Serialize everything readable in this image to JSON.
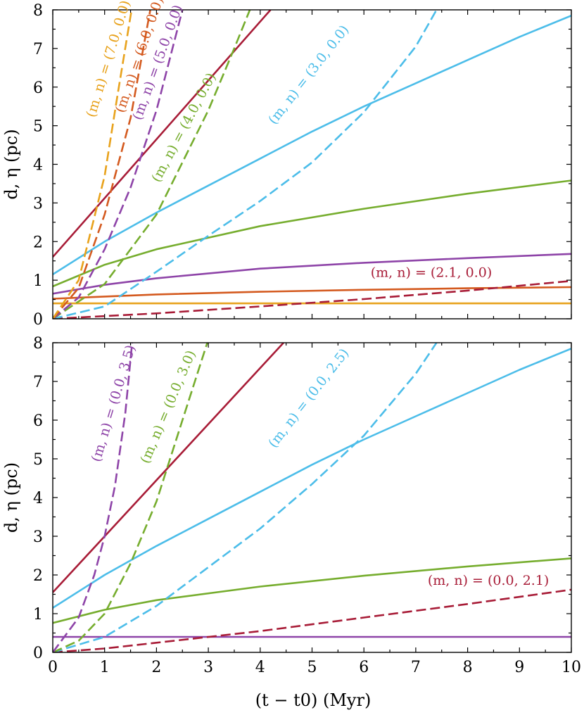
{
  "chart_data": [
    {
      "type": "line",
      "panel": "top",
      "xlim": [
        0,
        10
      ],
      "ylim": [
        0,
        8
      ],
      "x_ticks": [
        "0",
        "1",
        "2",
        "3",
        "4",
        "5",
        "6",
        "7",
        "8",
        "9",
        "10"
      ],
      "y_ticks": [
        "0",
        "1",
        "2",
        "3",
        "4",
        "5",
        "6",
        "7",
        "8"
      ],
      "ylabel": "d, η (pc)",
      "xlabel": "",
      "grid": false,
      "series": [
        {
          "style": "solid",
          "color": "#e8a21c",
          "x": [
            0,
            10
          ],
          "y": [
            0.4,
            0.4
          ]
        },
        {
          "style": "solid",
          "color": "#d45a1f",
          "x": [
            0,
            2,
            4,
            6,
            8,
            10
          ],
          "y": [
            0.52,
            0.63,
            0.7,
            0.75,
            0.79,
            0.82
          ]
        },
        {
          "style": "solid",
          "color": "#8e44a8",
          "x": [
            0,
            1,
            2,
            4,
            6,
            8,
            10
          ],
          "y": [
            0.65,
            0.88,
            1.05,
            1.3,
            1.45,
            1.57,
            1.68
          ]
        },
        {
          "style": "solid",
          "color": "#76ad2e",
          "x": [
            0,
            1,
            2,
            4,
            6,
            8,
            10
          ],
          "y": [
            0.84,
            1.4,
            1.8,
            2.4,
            2.85,
            3.24,
            3.58
          ]
        },
        {
          "style": "solid",
          "color": "#4cbde9",
          "x": [
            0,
            1,
            2,
            3,
            4,
            5,
            6,
            7,
            8,
            9,
            10
          ],
          "y": [
            1.15,
            2.0,
            2.75,
            3.45,
            4.15,
            4.85,
            5.5,
            6.1,
            6.7,
            7.3,
            7.85
          ]
        },
        {
          "style": "solid",
          "color": "#a81c37",
          "x": [
            0,
            4.2
          ],
          "y": [
            1.6,
            8.0
          ]
        },
        {
          "style": "dashed",
          "color": "#a81c37",
          "label": "(m, n) = (2.1, 0.0)",
          "x": [
            0,
            2,
            4,
            6,
            8,
            10
          ],
          "y": [
            0,
            0.14,
            0.32,
            0.51,
            0.73,
            0.98
          ]
        },
        {
          "style": "dashed",
          "color": "#4cbde9",
          "label": "(m, n) = (3.0, 0.0)",
          "x": [
            0,
            1,
            2,
            3,
            4,
            5,
            6,
            7,
            7.4
          ],
          "y": [
            0,
            0.32,
            1.22,
            2.15,
            3.05,
            4.05,
            5.35,
            7.05,
            8.0
          ]
        },
        {
          "style": "dashed",
          "color": "#76ad2e",
          "label": "(m, n) = (4.0, 0.0)",
          "x": [
            0,
            1,
            2,
            3,
            3.5,
            3.8
          ],
          "y": [
            0,
            0.9,
            2.7,
            5.4,
            7.0,
            8.0
          ]
        },
        {
          "style": "dashed",
          "color": "#8e44a8",
          "label": "(m, n) = (5.0, 0.0)",
          "x": [
            0,
            0.5,
            1,
            1.5,
            2,
            2.5
          ],
          "y": [
            0,
            0.55,
            1.8,
            3.4,
            5.4,
            8.0
          ]
        },
        {
          "style": "dashed",
          "color": "#d45a1f",
          "label": "(m, n) = (6.0, 0.0)",
          "x": [
            0,
            0.5,
            1,
            1.5,
            1.88
          ],
          "y": [
            0,
            0.8,
            2.7,
            5.2,
            8.0
          ]
        },
        {
          "style": "dashed",
          "color": "#e8a21c",
          "label": "(m, n) = (7.0, 0.0)",
          "x": [
            0,
            0.5,
            1,
            1.25,
            1.52
          ],
          "y": [
            0,
            1.0,
            3.7,
            5.8,
            8.0
          ]
        }
      ]
    },
    {
      "type": "line",
      "panel": "bottom",
      "xlim": [
        0,
        10
      ],
      "ylim": [
        0,
        8
      ],
      "x_ticks": [
        "0",
        "1",
        "2",
        "3",
        "4",
        "5",
        "6",
        "7",
        "8",
        "9",
        "10"
      ],
      "y_ticks": [
        "0",
        "1",
        "2",
        "3",
        "4",
        "5",
        "6",
        "7",
        "8"
      ],
      "ylabel": "d, η (pc)",
      "xlabel": "(t − t0) (Myr)",
      "grid": false,
      "series": [
        {
          "style": "solid",
          "color": "#8e44a8",
          "x": [
            0,
            10
          ],
          "y": [
            0.4,
            0.4
          ]
        },
        {
          "style": "solid",
          "color": "#76ad2e",
          "x": [
            0,
            1,
            2,
            4,
            6,
            8,
            10
          ],
          "y": [
            0.76,
            1.1,
            1.35,
            1.7,
            1.98,
            2.22,
            2.43
          ]
        },
        {
          "style": "solid",
          "color": "#4cbde9",
          "x": [
            0,
            1,
            2,
            3,
            4,
            5,
            6,
            7,
            8,
            9,
            10
          ],
          "y": [
            1.15,
            2.0,
            2.75,
            3.45,
            4.15,
            4.85,
            5.5,
            6.1,
            6.7,
            7.3,
            7.85
          ]
        },
        {
          "style": "solid",
          "color": "#a81c37",
          "x": [
            0,
            4.45
          ],
          "y": [
            1.55,
            8.0
          ]
        },
        {
          "style": "dashed",
          "color": "#a81c37",
          "label": "(m, n) = (0.0, 2.1)",
          "x": [
            0,
            1,
            2,
            4,
            6,
            8,
            10
          ],
          "y": [
            0,
            0.1,
            0.25,
            0.55,
            0.9,
            1.25,
            1.62
          ]
        },
        {
          "style": "dashed",
          "color": "#4cbde9",
          "label": "(m, n) = (0.0, 2.5)",
          "x": [
            0,
            1,
            2,
            3,
            4,
            5,
            6,
            7,
            7.4
          ],
          "y": [
            0,
            0.4,
            1.2,
            2.2,
            3.2,
            4.35,
            5.6,
            7.2,
            8.0
          ]
        },
        {
          "style": "dashed",
          "color": "#76ad2e",
          "label": "(m, n) = (0.0, 3.0)",
          "x": [
            0,
            0.5,
            1,
            1.5,
            2,
            2.5,
            2.98
          ],
          "y": [
            0,
            0.3,
            1.0,
            2.3,
            3.9,
            6.0,
            8.0
          ]
        },
        {
          "style": "dashed",
          "color": "#8e44a8",
          "label": "(m, n) = (0.0, 3.5)",
          "x": [
            0,
            0.5,
            0.8,
            1,
            1.2,
            1.4,
            1.53
          ],
          "y": [
            0,
            0.9,
            2.0,
            3.0,
            4.3,
            6.2,
            8.0
          ]
        }
      ]
    }
  ]
}
